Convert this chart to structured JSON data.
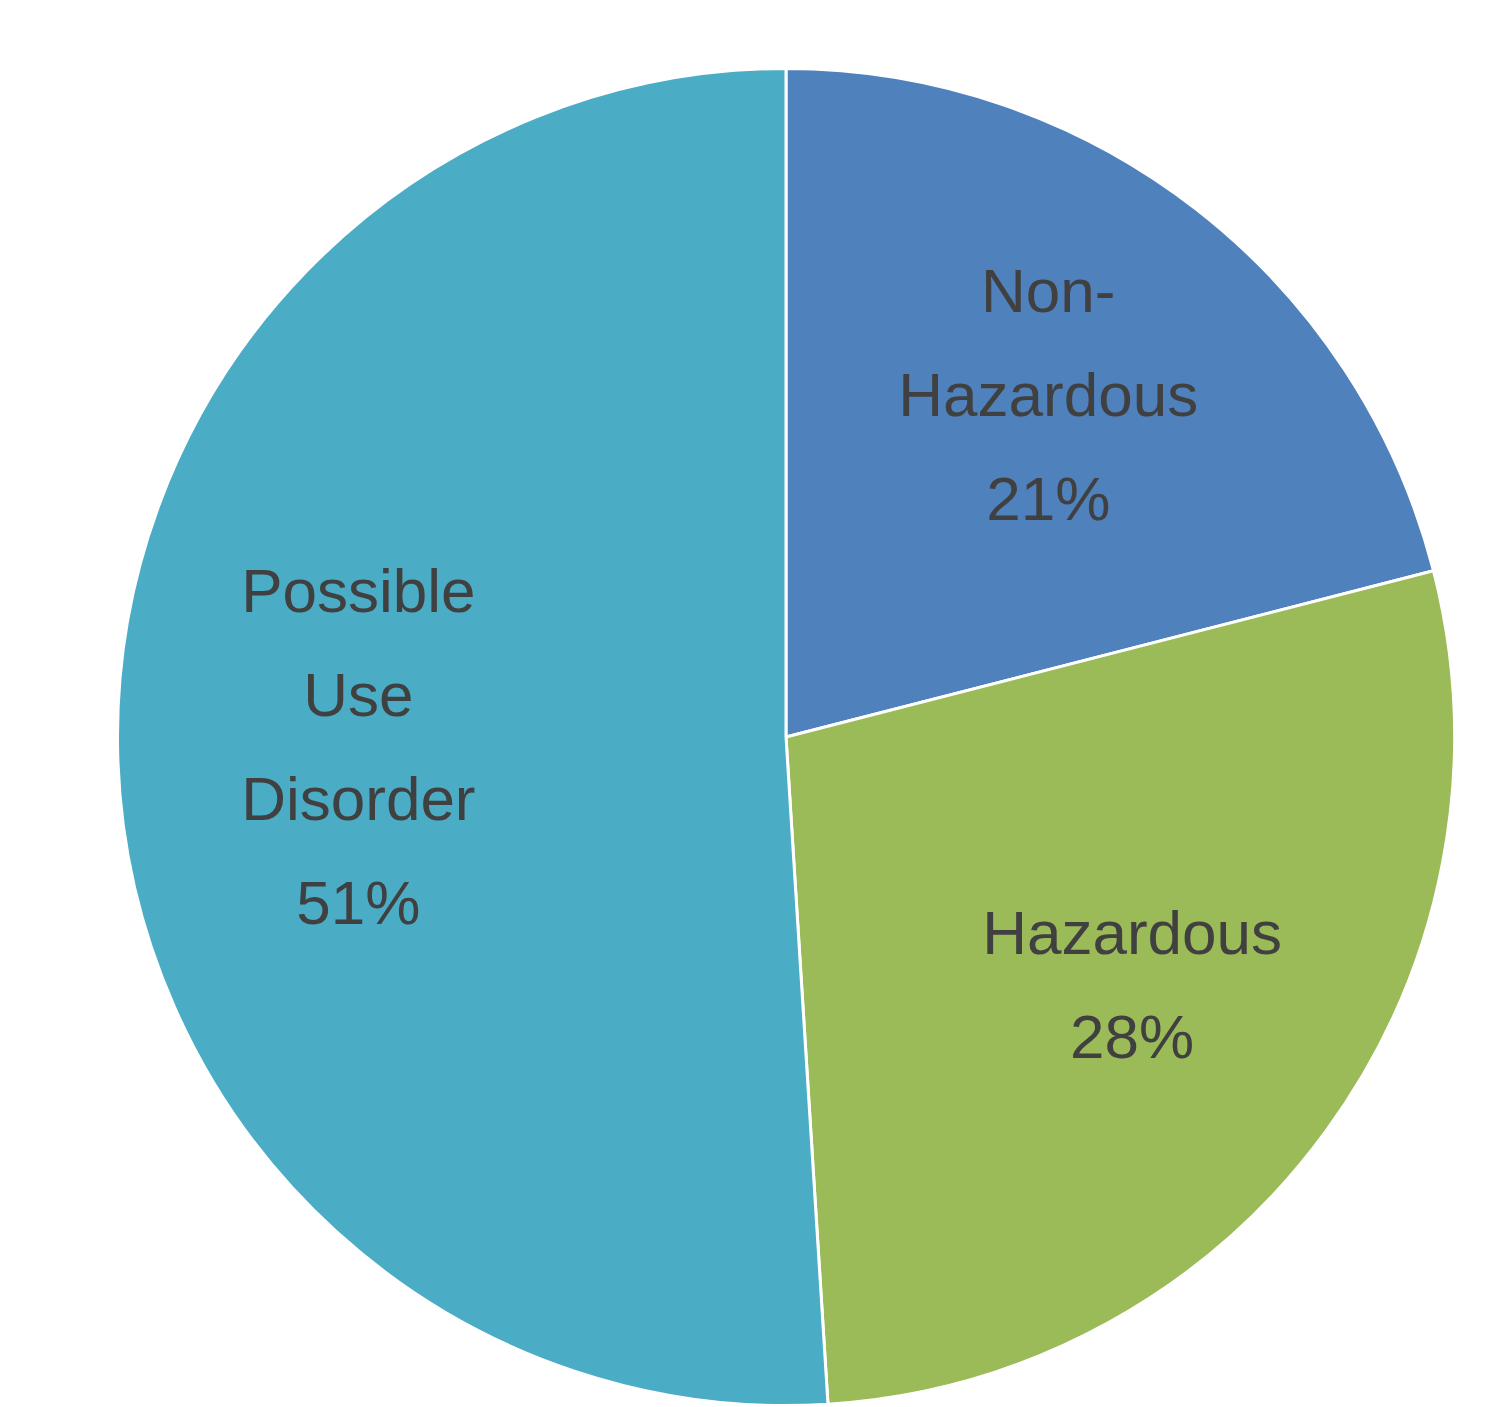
{
  "chart_data": {
    "type": "pie",
    "categories": [
      "Non-Hazardous",
      "Hazardous",
      "Possible Use Disorder"
    ],
    "values": [
      21,
      28,
      51
    ],
    "colors": [
      "#4f81bd",
      "#9bbb59",
      "#4bacc6"
    ],
    "value_labels": [
      "21%",
      "28%",
      "51%"
    ],
    "legend": false
  }
}
